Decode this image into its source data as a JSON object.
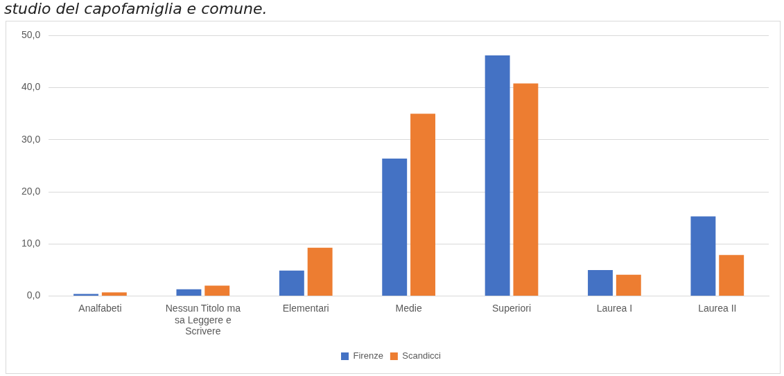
{
  "chart_data": {
    "type": "bar",
    "title": "studio del capofamiglia e comune.",
    "categories": [
      "Analfabeti",
      "Nessun Titolo ma sa Leggere e Scrivere",
      "Elementari",
      "Medie",
      "Superiori",
      "Laurea I",
      "Laurea II"
    ],
    "series": [
      {
        "name": "Firenze",
        "color": "#4472c4",
        "values": [
          0.4,
          1.3,
          4.9,
          26.4,
          46.2,
          5.0,
          15.3
        ]
      },
      {
        "name": "Scandicci",
        "color": "#ed7d31",
        "values": [
          0.7,
          2.0,
          9.3,
          35.0,
          40.8,
          4.1,
          7.9
        ]
      }
    ],
    "ylim": [
      0,
      50
    ],
    "yticks": [
      {
        "value": 0,
        "label": "0,0"
      },
      {
        "value": 10,
        "label": "10,0"
      },
      {
        "value": 20,
        "label": "20,0"
      },
      {
        "value": 30,
        "label": "30,0"
      },
      {
        "value": 40,
        "label": "40,0"
      },
      {
        "value": 50,
        "label": "50,0"
      }
    ],
    "grid": "y",
    "legend": "bottom"
  }
}
